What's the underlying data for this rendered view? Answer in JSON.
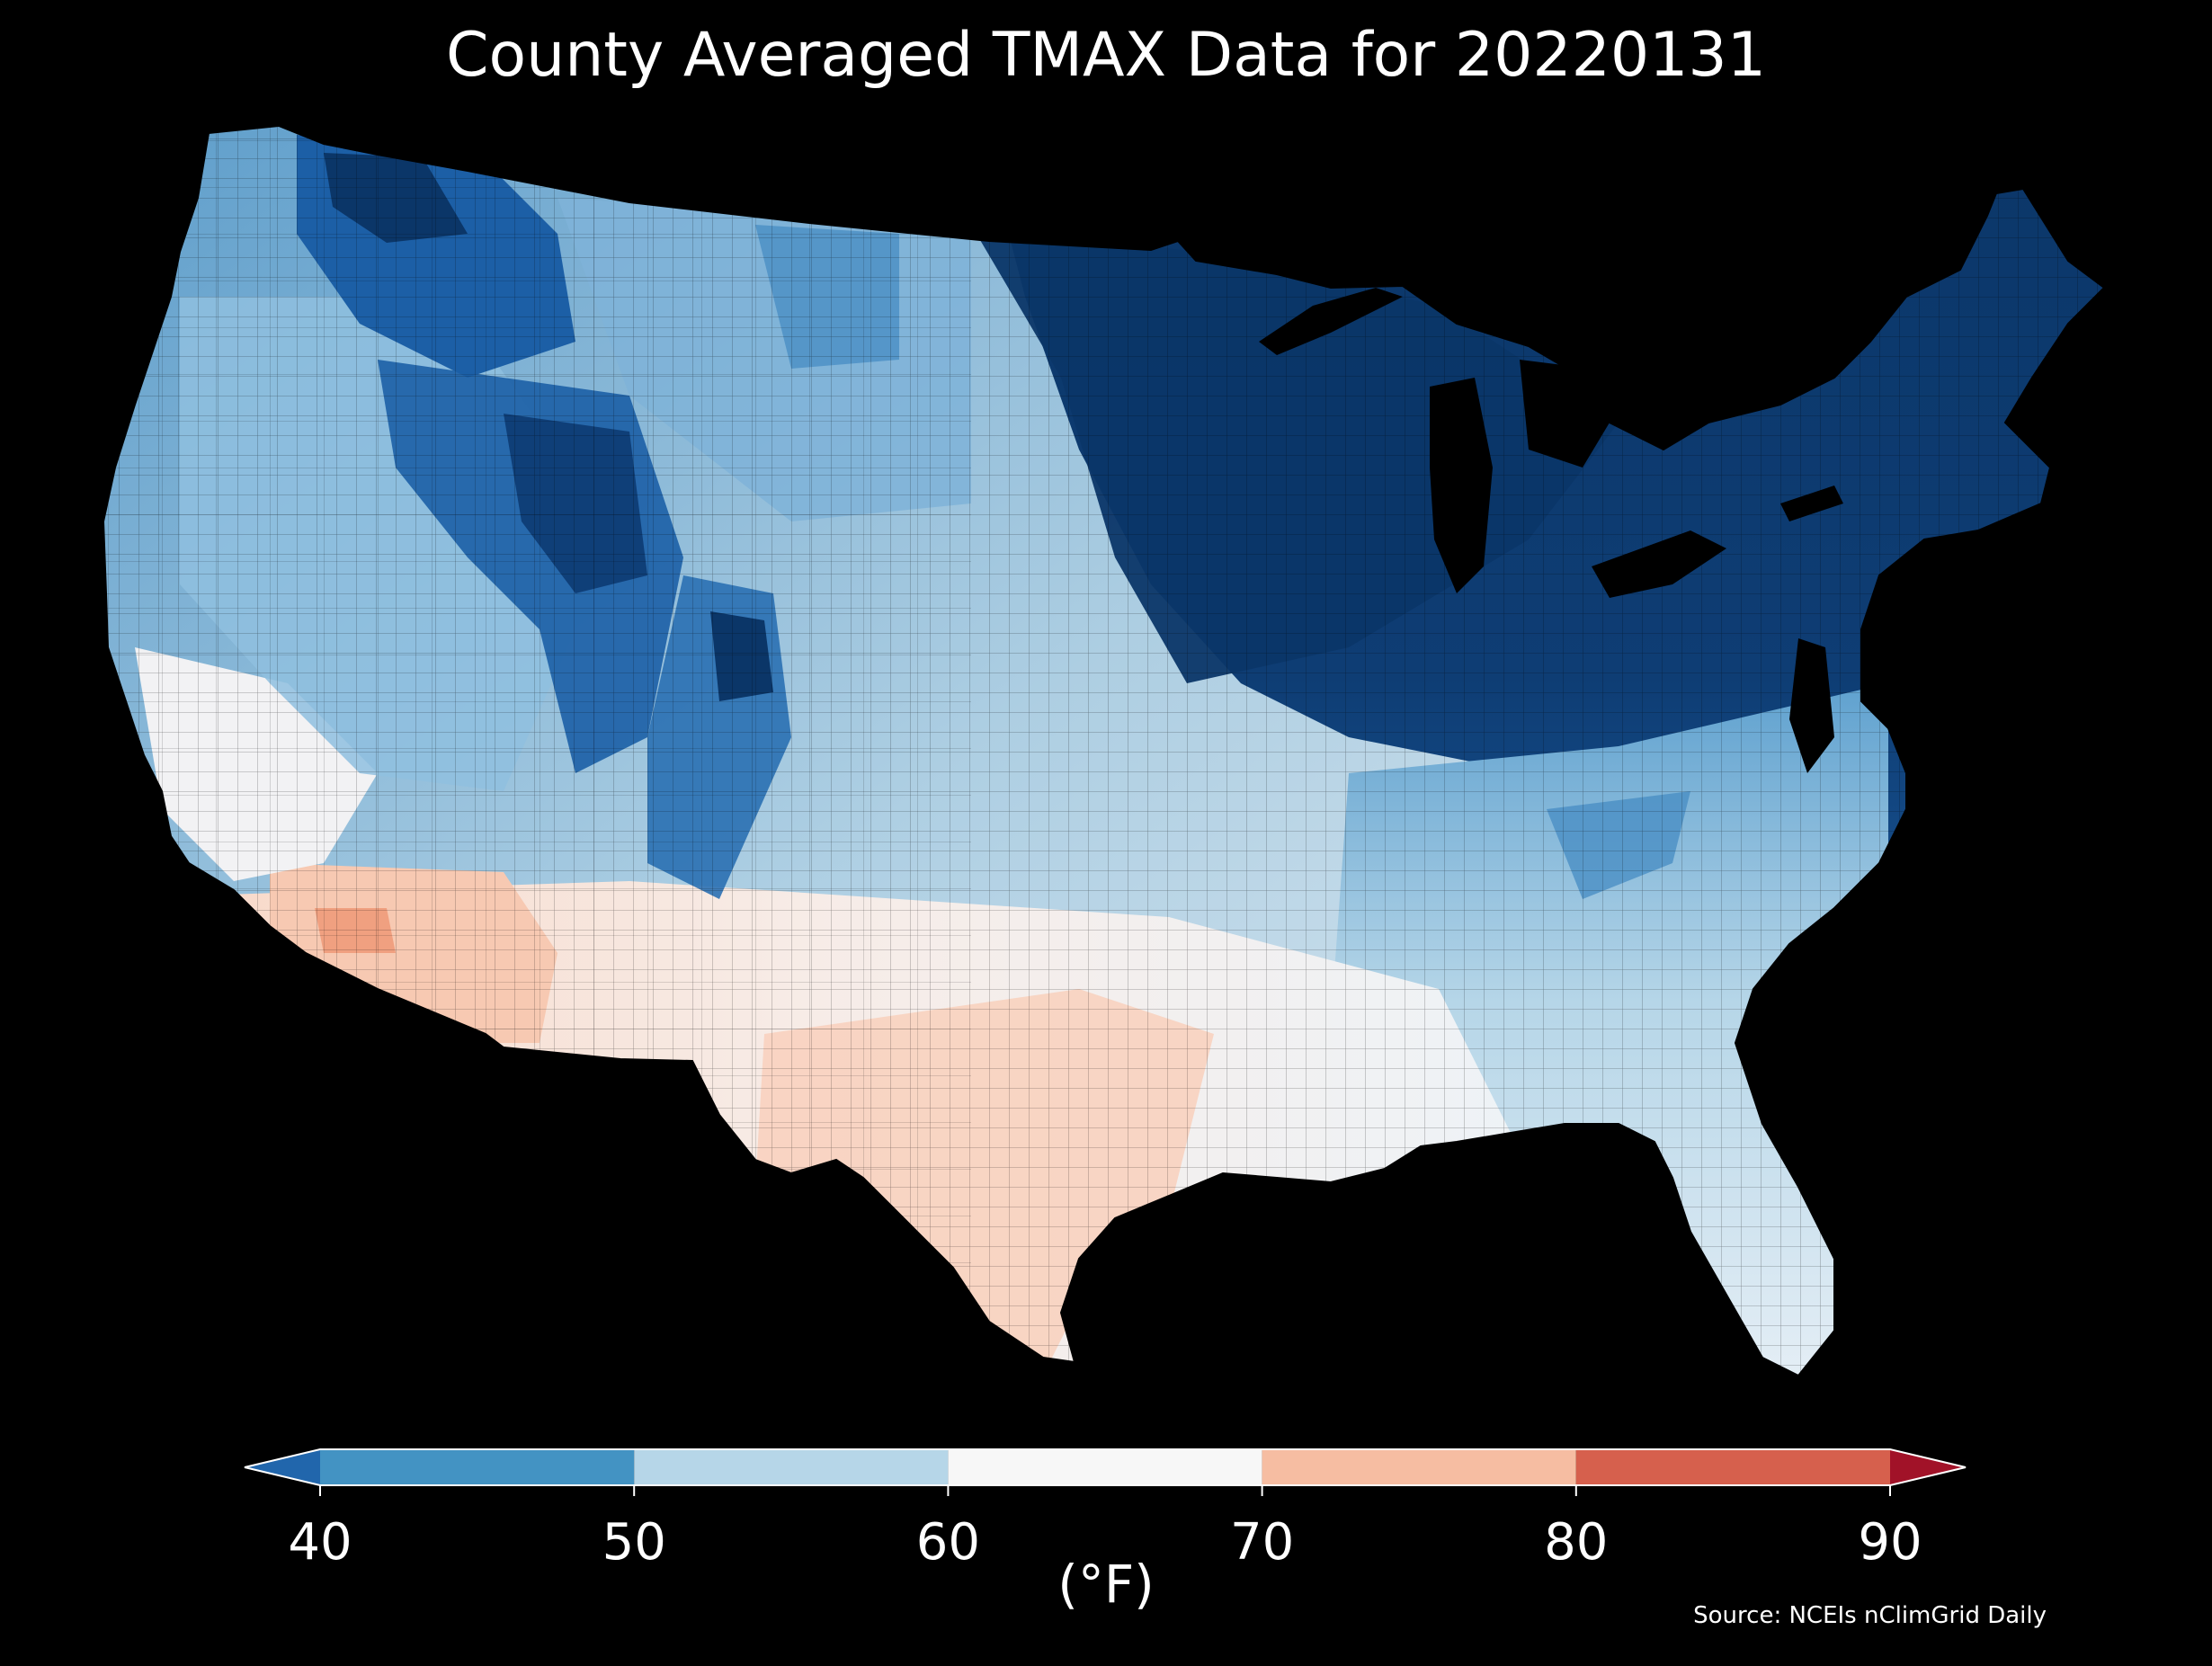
{
  "title": "County Averaged TMAX Data for 20220131",
  "source": "Source: NCEIs nClimGrid Daily",
  "colorbar": {
    "unit": "(°F)",
    "ticks": [
      "40",
      "50",
      "60",
      "70",
      "80",
      "90"
    ],
    "under_color": "#2166ac",
    "over_color": "#a11228",
    "bins": [
      {
        "from": 40,
        "to": 50,
        "color": "#4393c3"
      },
      {
        "from": 50,
        "to": 60,
        "color": "#b6d6e8"
      },
      {
        "from": 60,
        "to": 70,
        "color": "#f7f7f7"
      },
      {
        "from": 70,
        "to": 80,
        "color": "#f6bda2"
      },
      {
        "from": 80,
        "to": 90,
        "color": "#d6604d"
      }
    ]
  },
  "map": {
    "palette": {
      "very_cold": "#0b3668",
      "cold": "#1c5fa6",
      "cool": "#5fa1cf",
      "mild": "#b6d6e8",
      "neutral": "#f4f4f4",
      "warm": "#f8d4c2",
      "hot": "#f3a585",
      "land_outline": "#000000"
    }
  },
  "chart_data": {
    "type": "choropleth",
    "title": "County Averaged TMAX Data for 20220131",
    "variable": "TMAX",
    "units": "°F",
    "color_scale": {
      "min": 40,
      "max": 90,
      "step": 10,
      "extend": "both"
    }
  }
}
